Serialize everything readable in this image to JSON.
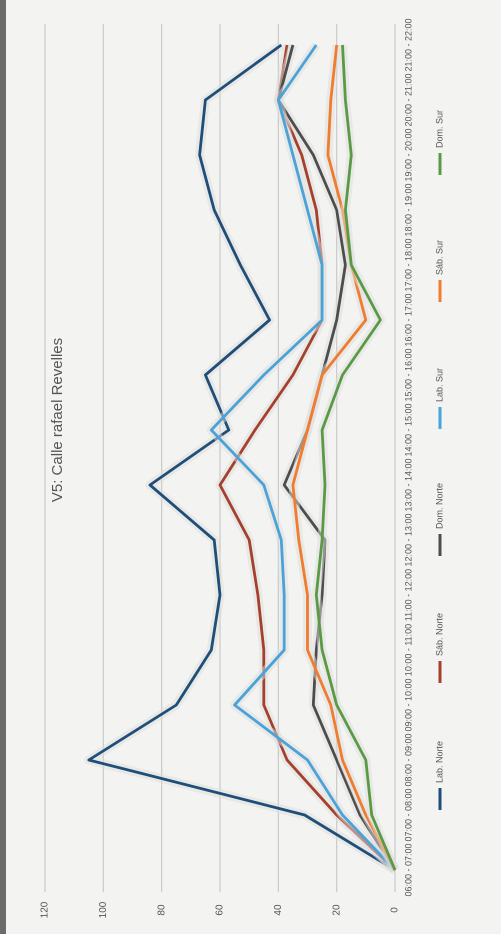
{
  "chart_data": {
    "type": "line",
    "title": "V5: Calle rafael Revelles",
    "categories": [
      "06:00 - 07:00",
      "07:00 - 08:00",
      "08:00 - 09:00",
      "09:00 - 10:00",
      "10:00 - 11:00",
      "11:00 - 12:00",
      "12:00 - 13:00",
      "13:00 - 14:00",
      "14:00 - 15:00",
      "15:00 - 16:00",
      "16:00 - 17:00",
      "17:00 - 18:00",
      "18:00 - 19:00",
      "19:00 - 20:00",
      "20:00 - 21:00",
      "21:00 - 22:00"
    ],
    "series": [
      {
        "name": "Lab. Norte",
        "color": "#1f4e79",
        "values": [
          0,
          31,
          105,
          75,
          63,
          60,
          62,
          84,
          57,
          65,
          43,
          53,
          62,
          67,
          65,
          39
        ]
      },
      {
        "name": "Sáb. Norte",
        "color": "#a5402d",
        "values": [
          0,
          20,
          37,
          45,
          45,
          47,
          50,
          60,
          48,
          35,
          25,
          25,
          27,
          32,
          40,
          37
        ]
      },
      {
        "name": "Dom. Norte",
        "color": "#4d4d4d",
        "values": [
          0,
          12,
          20,
          28,
          27,
          25,
          24,
          38,
          30,
          25,
          20,
          17,
          20,
          28,
          40,
          35
        ]
      },
      {
        "name": "Lab. Sur",
        "color": "#4aa3d8",
        "values": [
          0,
          18,
          30,
          55,
          38,
          38,
          39,
          45,
          63,
          45,
          25,
          25,
          30,
          35,
          40,
          27
        ]
      },
      {
        "name": "Sáb. Sur",
        "color": "#f07c30",
        "values": [
          0,
          10,
          18,
          22,
          30,
          30,
          33,
          35,
          30,
          25,
          10,
          15,
          18,
          23,
          22,
          20
        ]
      },
      {
        "name": "Dom. Sur",
        "color": "#5a9a45",
        "values": [
          0,
          8,
          10,
          20,
          25,
          27,
          25,
          24,
          25,
          18,
          5,
          15,
          17,
          15,
          17,
          18
        ]
      }
    ],
    "ylim": [
      0,
      120
    ],
    "yticks": [
      0,
      20,
      40,
      60,
      80,
      100,
      120
    ],
    "grid": true,
    "legend": "bottom"
  }
}
